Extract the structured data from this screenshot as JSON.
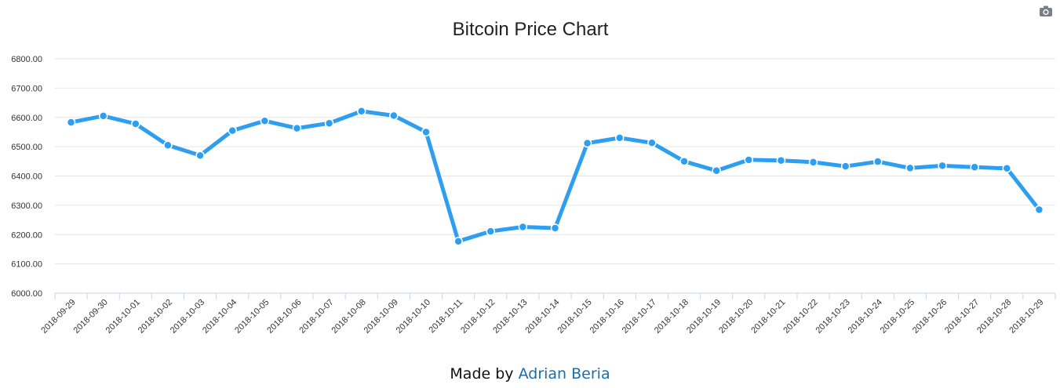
{
  "footer": {
    "made_by": "Made by",
    "author": "Adrian Beria"
  },
  "toolbar": {
    "camera_icon": "camera-icon"
  },
  "colors": {
    "line": "#2e9ef0",
    "grid": "#e6e6e6",
    "axis": "#c8d6e5",
    "author_link": "#1a6fa8"
  },
  "chart_data": {
    "type": "line",
    "title": "Bitcoin Price Chart",
    "xlabel": "",
    "ylabel": "",
    "ylim": [
      6000,
      6800
    ],
    "grid": true,
    "y_ticks": [
      "6000.00",
      "6100.00",
      "6200.00",
      "6300.00",
      "6400.00",
      "6500.00",
      "6600.00",
      "6700.00",
      "6800.00"
    ],
    "categories": [
      "2018-09-29",
      "2018-09-30",
      "2018-10-01",
      "2018-10-02",
      "2018-10-03",
      "2018-10-04",
      "2018-10-05",
      "2018-10-06",
      "2018-10-07",
      "2018-10-08",
      "2018-10-09",
      "2018-10-10",
      "2018-10-11",
      "2018-10-12",
      "2018-10-13",
      "2018-10-14",
      "2018-10-15",
      "2018-10-16",
      "2018-10-17",
      "2018-10-18",
      "2018-10-19",
      "2018-10-20",
      "2018-10-21",
      "2018-10-22",
      "2018-10-23",
      "2018-10-24",
      "2018-10-25",
      "2018-10-26",
      "2018-10-27",
      "2018-10-28",
      "2018-10-29"
    ],
    "series": [
      {
        "values": [
          6583,
          6605,
          6578,
          6505,
          6470,
          6555,
          6588,
          6563,
          6580,
          6621,
          6606,
          6550,
          6177,
          6211,
          6226,
          6222,
          6512,
          6530,
          6513,
          6450,
          6418,
          6455,
          6453,
          6447,
          6433,
          6449,
          6427,
          6435,
          6430,
          6426,
          6285
        ]
      }
    ]
  }
}
